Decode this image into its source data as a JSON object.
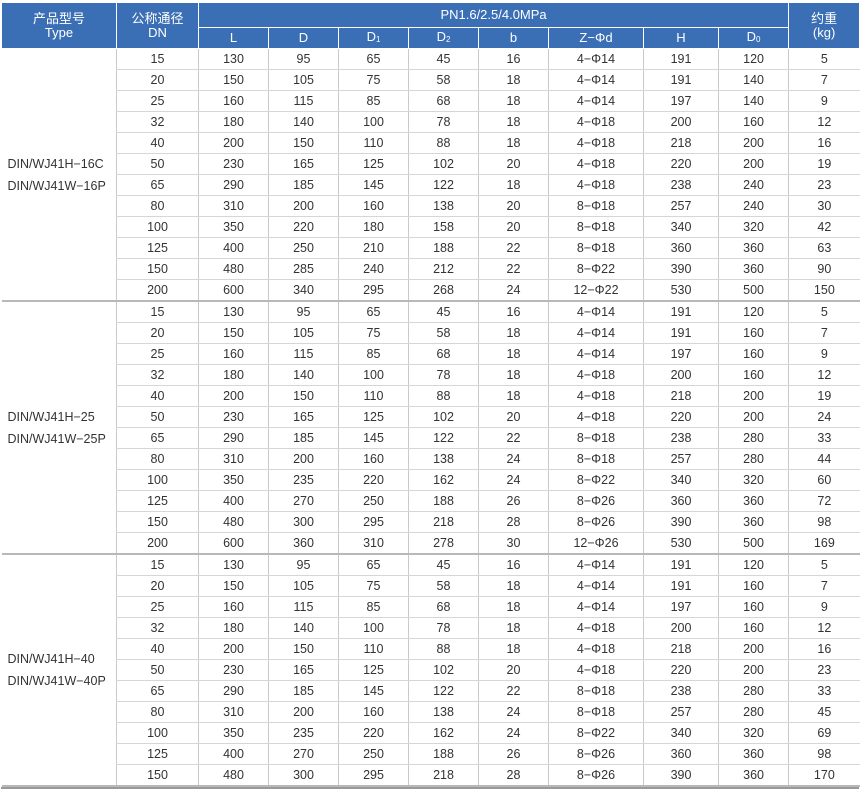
{
  "header": {
    "type_zh": "产品型号",
    "type_en": "Type",
    "dn_zh": "公称通径",
    "dn_en": "DN",
    "pressure": "PN1.6/2.5/4.0MPa",
    "weight_zh": "约重",
    "weight_unit": "(kg)",
    "cols": [
      {
        "base": "L",
        "sub": ""
      },
      {
        "base": "D",
        "sub": ""
      },
      {
        "base": "D",
        "sub": "1"
      },
      {
        "base": "D",
        "sub": "2"
      },
      {
        "base": "b",
        "sub": ""
      },
      {
        "base": "Z−Φd",
        "sub": ""
      },
      {
        "base": "H",
        "sub": ""
      },
      {
        "base": "D",
        "sub": "0"
      }
    ]
  },
  "groups": [
    {
      "types": [
        "DIN/WJ41H−16C",
        "DIN/WJ41W−16P"
      ],
      "rows": [
        [
          "15",
          "130",
          "95",
          "65",
          "45",
          "16",
          "4−Φ14",
          "191",
          "120",
          "5"
        ],
        [
          "20",
          "150",
          "105",
          "75",
          "58",
          "18",
          "4−Φ14",
          "191",
          "140",
          "7"
        ],
        [
          "25",
          "160",
          "115",
          "85",
          "68",
          "18",
          "4−Φ14",
          "197",
          "140",
          "9"
        ],
        [
          "32",
          "180",
          "140",
          "100",
          "78",
          "18",
          "4−Φ18",
          "200",
          "160",
          "12"
        ],
        [
          "40",
          "200",
          "150",
          "110",
          "88",
          "18",
          "4−Φ18",
          "218",
          "200",
          "16"
        ],
        [
          "50",
          "230",
          "165",
          "125",
          "102",
          "20",
          "4−Φ18",
          "220",
          "200",
          "19"
        ],
        [
          "65",
          "290",
          "185",
          "145",
          "122",
          "18",
          "4−Φ18",
          "238",
          "240",
          "23"
        ],
        [
          "80",
          "310",
          "200",
          "160",
          "138",
          "20",
          "8−Φ18",
          "257",
          "240",
          "30"
        ],
        [
          "100",
          "350",
          "220",
          "180",
          "158",
          "20",
          "8−Φ18",
          "340",
          "320",
          "42"
        ],
        [
          "125",
          "400",
          "250",
          "210",
          "188",
          "22",
          "8−Φ18",
          "360",
          "360",
          "63"
        ],
        [
          "150",
          "480",
          "285",
          "240",
          "212",
          "22",
          "8−Φ22",
          "390",
          "360",
          "90"
        ],
        [
          "200",
          "600",
          "340",
          "295",
          "268",
          "24",
          "12−Φ22",
          "530",
          "500",
          "150"
        ]
      ]
    },
    {
      "types": [
        "DIN/WJ41H−25",
        "DIN/WJ41W−25P"
      ],
      "rows": [
        [
          "15",
          "130",
          "95",
          "65",
          "45",
          "16",
          "4−Φ14",
          "191",
          "120",
          "5"
        ],
        [
          "20",
          "150",
          "105",
          "75",
          "58",
          "18",
          "4−Φ14",
          "191",
          "160",
          "7"
        ],
        [
          "25",
          "160",
          "115",
          "85",
          "68",
          "18",
          "4−Φ14",
          "197",
          "160",
          "9"
        ],
        [
          "32",
          "180",
          "140",
          "100",
          "78",
          "18",
          "4−Φ18",
          "200",
          "160",
          "12"
        ],
        [
          "40",
          "200",
          "150",
          "110",
          "88",
          "18",
          "4−Φ18",
          "218",
          "200",
          "19"
        ],
        [
          "50",
          "230",
          "165",
          "125",
          "102",
          "20",
          "4−Φ18",
          "220",
          "200",
          "24"
        ],
        [
          "65",
          "290",
          "185",
          "145",
          "122",
          "22",
          "8−Φ18",
          "238",
          "280",
          "33"
        ],
        [
          "80",
          "310",
          "200",
          "160",
          "138",
          "24",
          "8−Φ18",
          "257",
          "280",
          "44"
        ],
        [
          "100",
          "350",
          "235",
          "220",
          "162",
          "24",
          "8−Φ22",
          "340",
          "320",
          "60"
        ],
        [
          "125",
          "400",
          "270",
          "250",
          "188",
          "26",
          "8−Φ26",
          "360",
          "360",
          "72"
        ],
        [
          "150",
          "480",
          "300",
          "295",
          "218",
          "28",
          "8−Φ26",
          "390",
          "360",
          "98"
        ],
        [
          "200",
          "600",
          "360",
          "310",
          "278",
          "30",
          "12−Φ26",
          "530",
          "500",
          "169"
        ]
      ]
    },
    {
      "types": [
        "DIN/WJ41H−40",
        "DIN/WJ41W−40P"
      ],
      "rows": [
        [
          "15",
          "130",
          "95",
          "65",
          "45",
          "16",
          "4−Φ14",
          "191",
          "120",
          "5"
        ],
        [
          "20",
          "150",
          "105",
          "75",
          "58",
          "18",
          "4−Φ14",
          "191",
          "160",
          "7"
        ],
        [
          "25",
          "160",
          "115",
          "85",
          "68",
          "18",
          "4−Φ14",
          "197",
          "160",
          "9"
        ],
        [
          "32",
          "180",
          "140",
          "100",
          "78",
          "18",
          "4−Φ18",
          "200",
          "160",
          "12"
        ],
        [
          "40",
          "200",
          "150",
          "110",
          "88",
          "18",
          "4−Φ18",
          "218",
          "200",
          "16"
        ],
        [
          "50",
          "230",
          "165",
          "125",
          "102",
          "20",
          "4−Φ18",
          "220",
          "200",
          "23"
        ],
        [
          "65",
          "290",
          "185",
          "145",
          "122",
          "22",
          "8−Φ18",
          "238",
          "280",
          "33"
        ],
        [
          "80",
          "310",
          "200",
          "160",
          "138",
          "24",
          "8−Φ18",
          "257",
          "280",
          "45"
        ],
        [
          "100",
          "350",
          "235",
          "220",
          "162",
          "24",
          "8−Φ22",
          "340",
          "320",
          "69"
        ],
        [
          "125",
          "400",
          "270",
          "250",
          "188",
          "26",
          "8−Φ26",
          "360",
          "360",
          "98"
        ],
        [
          "150",
          "480",
          "300",
          "295",
          "218",
          "28",
          "8−Φ26",
          "390",
          "360",
          "170"
        ]
      ]
    }
  ],
  "colors": {
    "header_bg": "#3a6fb5",
    "header_text": "#ffffff",
    "body_text": "#333333",
    "grid": "#c9c9c9"
  }
}
